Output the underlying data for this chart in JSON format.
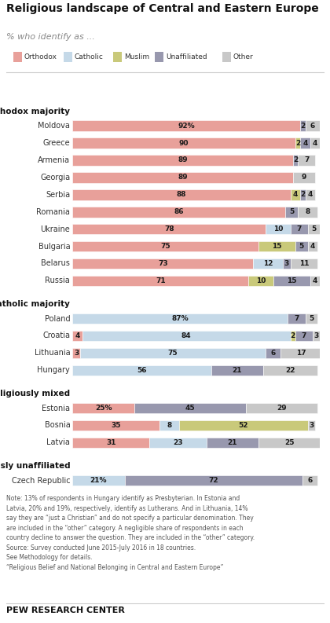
{
  "title": "Religious landscape of Central and Eastern Europe",
  "subtitle": "% who identify as ...",
  "legend_labels": [
    "Orthodox",
    "Catholic",
    "Muslim",
    "Unaffiliated",
    "Other"
  ],
  "colors": {
    "Orthodox": "#E8A09A",
    "Catholic": "#C5D9E8",
    "Muslim": "#C9C97A",
    "Unaffiliated": "#9898AE",
    "Other": "#C8C8C8"
  },
  "sections": [
    {
      "label": "Orthodox majority",
      "countries": [
        {
          "name": "Moldova",
          "vals": [
            92,
            0,
            0,
            2,
            6
          ]
        },
        {
          "name": "Greece",
          "vals": [
            90,
            0,
            2,
            4,
            4
          ]
        },
        {
          "name": "Armenia",
          "vals": [
            89,
            0,
            0,
            2,
            7
          ]
        },
        {
          "name": "Georgia",
          "vals": [
            89,
            0,
            0,
            0,
            9
          ]
        },
        {
          "name": "Serbia",
          "vals": [
            88,
            0,
            4,
            2,
            4
          ]
        },
        {
          "name": "Romania",
          "vals": [
            86,
            0,
            0,
            5,
            8
          ]
        },
        {
          "name": "Ukraine",
          "vals": [
            78,
            10,
            0,
            7,
            5
          ]
        },
        {
          "name": "Bulgaria",
          "vals": [
            75,
            0,
            15,
            5,
            4
          ]
        },
        {
          "name": "Belarus",
          "vals": [
            73,
            12,
            0,
            3,
            11
          ]
        },
        {
          "name": "Russia",
          "vals": [
            71,
            0,
            10,
            15,
            4
          ]
        }
      ]
    },
    {
      "label": "Catholic majority",
      "countries": [
        {
          "name": "Poland",
          "vals": [
            0,
            87,
            0,
            7,
            5
          ]
        },
        {
          "name": "Croatia",
          "vals": [
            4,
            84,
            2,
            7,
            3
          ]
        },
        {
          "name": "Lithuania",
          "vals": [
            3,
            75,
            0,
            6,
            17
          ]
        },
        {
          "name": "Hungary",
          "vals": [
            0,
            56,
            0,
            21,
            22
          ]
        }
      ]
    },
    {
      "label": "Religiously mixed",
      "countries": [
        {
          "name": "Estonia",
          "vals": [
            25,
            0,
            0,
            45,
            29
          ]
        },
        {
          "name": "Bosnia",
          "vals": [
            35,
            8,
            52,
            0,
            3
          ]
        },
        {
          "name": "Latvia",
          "vals": [
            31,
            23,
            0,
            21,
            25
          ]
        }
      ]
    },
    {
      "label": "Majority religiously unaffiliated",
      "countries": [
        {
          "name": "Czech Republic",
          "vals": [
            0,
            21,
            0,
            72,
            6
          ]
        }
      ]
    }
  ],
  "pct_label_countries": [
    "Moldova",
    "Poland",
    "Estonia",
    "Czech Republic"
  ],
  "note_lines": [
    "Note: 13% of respondents in Hungary identify as Presbyterian. In Estonia and",
    "Latvia, 20% and 19%, respectively, identify as Lutherans. And in Lithuania, 14%",
    "say they are “just a Christian” and do not specify a particular denomination. They",
    "are included in the “other” category. A negligible share of respondents in each",
    "country decline to answer the question. They are included in the “other” category.",
    "Source: Survey conducted June 2015-July 2016 in 18 countries.",
    "See Methodology for details.",
    "“Religious Belief and National Belonging in Central and Eastern Europe”"
  ],
  "footer": "PEW RESEARCH CENTER",
  "bg": "#FFFFFF"
}
